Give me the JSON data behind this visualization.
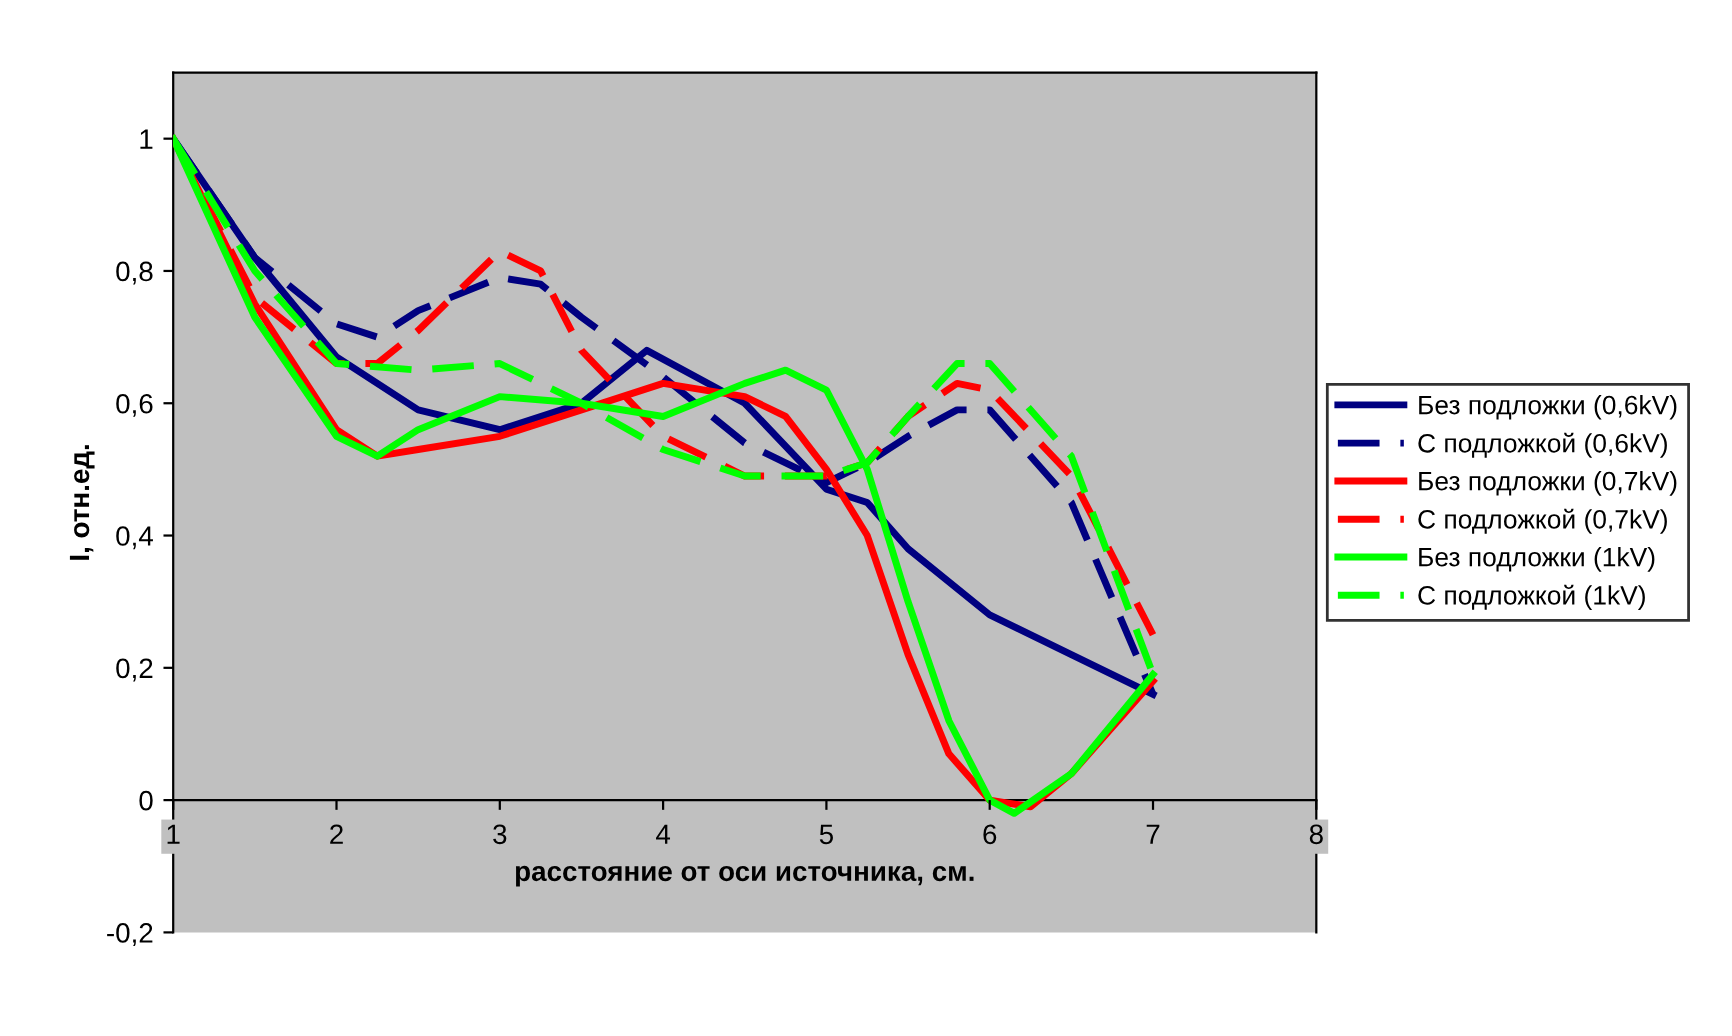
{
  "chart_data": {
    "type": "line",
    "xlabel": "расстояние от оси источника, см.",
    "ylabel": "I, отн.ед.",
    "xlim": [
      1,
      8
    ],
    "xticks": [
      1,
      2,
      3,
      4,
      5,
      6,
      7,
      8
    ],
    "ylim": [
      -0.2,
      1.1
    ],
    "yticks": [
      {
        "value": -0.2,
        "label": "-0,2"
      },
      {
        "value": 0,
        "label": "0"
      },
      {
        "value": 0.2,
        "label": "0,2"
      },
      {
        "value": 0.4,
        "label": "0,4"
      },
      {
        "value": 0.6,
        "label": "0,6"
      },
      {
        "value": 0.8,
        "label": "0,8"
      },
      {
        "value": 1,
        "label": "1"
      }
    ],
    "grid": false,
    "legend": "right",
    "marker": "none",
    "series": [
      {
        "name": "Без подложки (0,6kV)",
        "color": "#000080",
        "line_style": "solid",
        "x": [
          1,
          1.5,
          2,
          2.5,
          3,
          3.5,
          3.9,
          4.5,
          5,
          5.25,
          5.5,
          6,
          6.5,
          7
        ],
        "values": [
          1.0,
          0.82,
          0.67,
          0.59,
          0.56,
          0.6,
          0.68,
          0.6,
          0.47,
          0.45,
          0.38,
          0.28,
          0.22,
          0.16
        ]
      },
      {
        "name": "С подложкой (0,6kV)",
        "color": "#000080",
        "line_style": "dashed",
        "x": [
          1,
          1.5,
          2,
          2.25,
          2.5,
          3,
          3.25,
          3.5,
          4,
          4.5,
          5,
          5.25,
          5.5,
          5.8,
          6,
          6.5,
          7
        ],
        "values": [
          1.0,
          0.82,
          0.72,
          0.7,
          0.74,
          0.79,
          0.78,
          0.73,
          0.64,
          0.54,
          0.48,
          0.51,
          0.55,
          0.59,
          0.59,
          0.45,
          0.16
        ]
      },
      {
        "name": "Без подложки (0,7kV)",
        "color": "#ff0000",
        "line_style": "solid",
        "x": [
          1,
          1.5,
          2,
          2.25,
          2.5,
          3,
          3.5,
          4,
          4.5,
          4.75,
          5,
          5.25,
          5.5,
          5.75,
          6,
          6.25,
          6.5,
          7
        ],
        "values": [
          1.0,
          0.75,
          0.56,
          0.52,
          0.53,
          0.55,
          0.59,
          0.63,
          0.61,
          0.58,
          0.5,
          0.4,
          0.22,
          0.07,
          0.0,
          -0.01,
          0.04,
          0.18
        ]
      },
      {
        "name": "С подложкой (0,7kV)",
        "color": "#ff0000",
        "line_style": "dashed",
        "x": [
          1,
          1.5,
          2,
          2.25,
          2.5,
          3,
          3.25,
          3.5,
          4,
          4.5,
          5,
          5.25,
          5.5,
          5.8,
          6,
          6.5,
          7
        ],
        "values": [
          1.0,
          0.76,
          0.66,
          0.66,
          0.71,
          0.83,
          0.8,
          0.68,
          0.55,
          0.49,
          0.49,
          0.51,
          0.58,
          0.63,
          0.62,
          0.49,
          0.25
        ]
      },
      {
        "name": "Без подложки (1kV)",
        "color": "#00ff00",
        "line_style": "solid",
        "x": [
          1,
          1.5,
          2,
          2.25,
          2.5,
          3,
          3.5,
          4,
          4.5,
          4.75,
          5,
          5.25,
          5.5,
          5.75,
          6,
          6.15,
          6.5,
          7
        ],
        "values": [
          1.0,
          0.73,
          0.55,
          0.52,
          0.56,
          0.61,
          0.6,
          0.58,
          0.63,
          0.65,
          0.62,
          0.5,
          0.3,
          0.12,
          0.0,
          -0.02,
          0.04,
          0.19
        ]
      },
      {
        "name": "С подложкой (1kV)",
        "color": "#00ff00",
        "line_style": "dashed",
        "x": [
          1,
          1.5,
          2,
          2.5,
          3,
          3.5,
          4,
          4.5,
          5,
          5.25,
          5.5,
          5.8,
          6,
          6.5,
          7
        ],
        "values": [
          1.0,
          0.8,
          0.66,
          0.65,
          0.66,
          0.6,
          0.53,
          0.49,
          0.49,
          0.51,
          0.58,
          0.66,
          0.66,
          0.52,
          0.19
        ]
      }
    ]
  }
}
